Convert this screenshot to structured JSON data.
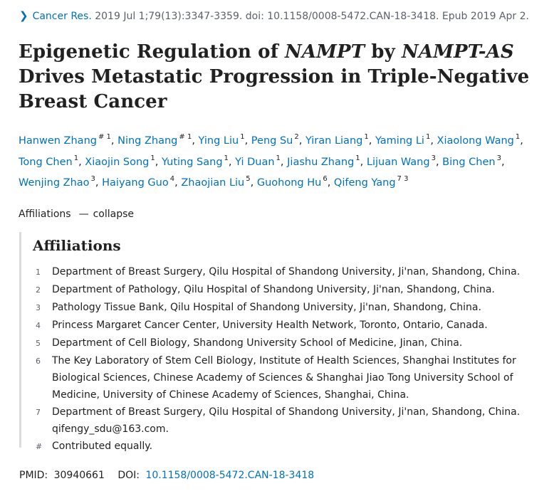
{
  "citation": {
    "journal": "Cancer Res.",
    "details": "2019 Jul 1;79(13):3347-3359. doi: 10.1158/0008-5472.CAN-18-3418. Epub 2019 Apr 2."
  },
  "title": {
    "part1": "Epigenetic Regulation of ",
    "gene1": "NAMPT",
    "part2": " by ",
    "gene2": "NAMPT-AS",
    "part3": " Drives Metastatic Progression in Triple-Negative Breast Cancer"
  },
  "authors": [
    {
      "name": "Hanwen Zhang",
      "sup": "# 1"
    },
    {
      "name": "Ning Zhang",
      "sup": "# 1"
    },
    {
      "name": "Ying Liu",
      "sup": "1"
    },
    {
      "name": "Peng Su",
      "sup": "2"
    },
    {
      "name": "Yiran Liang",
      "sup": "1"
    },
    {
      "name": "Yaming Li",
      "sup": "1"
    },
    {
      "name": "Xiaolong Wang",
      "sup": "1"
    },
    {
      "name": "Tong Chen",
      "sup": "1"
    },
    {
      "name": "Xiaojin Song",
      "sup": "1"
    },
    {
      "name": "Yuting Sang",
      "sup": "1"
    },
    {
      "name": "Yi Duan",
      "sup": "1"
    },
    {
      "name": "Jiashu Zhang",
      "sup": "1"
    },
    {
      "name": "Lijuan Wang",
      "sup": "3"
    },
    {
      "name": "Bing Chen",
      "sup": "3"
    },
    {
      "name": "Wenjing Zhao",
      "sup": "3"
    },
    {
      "name": "Haiyang Guo",
      "sup": "4"
    },
    {
      "name": "Zhaojian Liu",
      "sup": "5"
    },
    {
      "name": "Guohong Hu",
      "sup": "6"
    },
    {
      "name": "Qifeng Yang",
      "sup": "7 3"
    }
  ],
  "affiliations_toggle": {
    "label": "Affiliations",
    "dash": "—",
    "action": "collapse"
  },
  "affiliations": {
    "heading": "Affiliations",
    "items": [
      {
        "key": "1",
        "text": "Department of Breast Surgery, Qilu Hospital of Shandong University, Ji'nan, Shandong, China."
      },
      {
        "key": "2",
        "text": "Department of Pathology, Qilu Hospital of Shandong University, Ji'nan, Shandong, China."
      },
      {
        "key": "3",
        "text": "Pathology Tissue Bank, Qilu Hospital of Shandong University, Ji'nan, Shandong, China."
      },
      {
        "key": "4",
        "text": "Princess Margaret Cancer Center, University Health Network, Toronto, Ontario, Canada."
      },
      {
        "key": "5",
        "text": "Department of Cell Biology, Shandong University School of Medicine, Jinan, China."
      },
      {
        "key": "6",
        "text": "The Key Laboratory of Stem Cell Biology, Institute of Health Sciences, Shanghai Institutes for Biological Sciences, Chinese Academy of Sciences & Shanghai Jiao Tong University School of Medicine, University of Chinese Academy of Sciences, Shanghai, China."
      },
      {
        "key": "7",
        "text": "Department of Breast Surgery, Qilu Hospital of Shandong University, Ji'nan, Shandong, China. qifengy_sdu@163.com."
      },
      {
        "key": "#",
        "text": "Contributed equally."
      }
    ]
  },
  "identifiers": {
    "pmid_label": "PMID:",
    "pmid": "30940661",
    "doi_label": "DOI:",
    "doi": "10.1158/0008-5472.CAN-18-3418"
  },
  "colors": {
    "link": "#0071bc",
    "text": "#212121",
    "muted": "#5b616b",
    "rule": "#dcdcdc"
  },
  "icons": {
    "citation_chevron": "chevron-right-icon"
  }
}
